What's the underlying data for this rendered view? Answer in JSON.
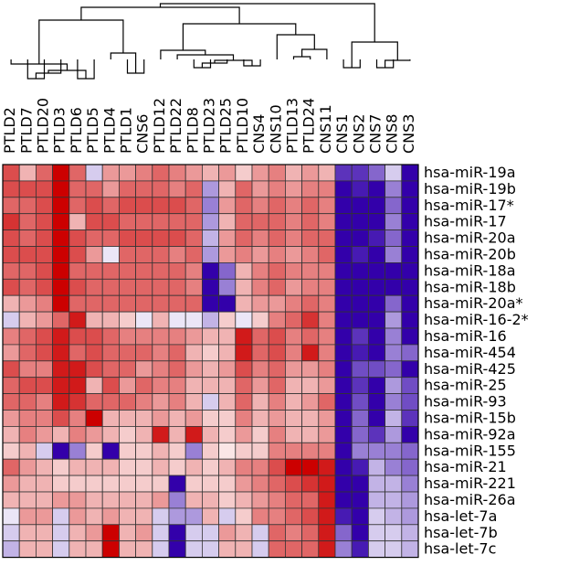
{
  "chart_data": {
    "type": "heatmap",
    "columns": [
      "PTLD2",
      "PTLD7",
      "PTLD20",
      "PTLD3",
      "PTLD6",
      "PTLD5",
      "PTLD4",
      "PTLD1",
      "CNS6",
      "PTLD12",
      "PTLD22",
      "PTLD8",
      "PTLD23",
      "PTLD25",
      "PTLD10",
      "CNS4",
      "CNS10",
      "PTLD13",
      "PTLD24",
      "CNS11",
      "CNS1",
      "CNS2",
      "CNS7",
      "CNS8",
      "CNS3"
    ],
    "rows": [
      "hsa-miR-19a",
      "hsa-miR-19b",
      "hsa-miR-17*",
      "hsa-miR-17",
      "hsa-miR-20a",
      "hsa-miR-20b",
      "hsa-miR-18a",
      "hsa-miR-18b",
      "hsa-miR-20a*",
      "hsa-miR-16-2*",
      "hsa-miR-16",
      "hsa-miR-454",
      "hsa-miR-425",
      "hsa-miR-25",
      "hsa-miR-93",
      "hsa-miR-15b",
      "hsa-miR-92a",
      "hsa-miR-155",
      "hsa-miR-21",
      "hsa-miR-221",
      "hsa-miR-26a",
      "hsa-let-7a",
      "hsa-let-7b",
      "hsa-let-7c"
    ],
    "value_scale": "-1 = deep blue, 0 = white, 1 = deep red (no legend shown)",
    "values": [
      [
        0.7,
        0.3,
        0.6,
        1.0,
        0.6,
        -0.2,
        0.4,
        0.4,
        0.5,
        0.6,
        0.5,
        0.4,
        0.3,
        0.4,
        0.2,
        0.4,
        0.5,
        0.3,
        0.4,
        0.3,
        -0.8,
        -0.8,
        -0.6,
        -0.2,
        -1.0
      ],
      [
        0.7,
        0.7,
        0.7,
        1.0,
        0.6,
        0.6,
        0.4,
        0.6,
        0.6,
        0.6,
        0.5,
        0.6,
        -0.4,
        0.3,
        0.6,
        0.4,
        0.5,
        0.4,
        0.5,
        0.5,
        -1.0,
        -0.9,
        -1.0,
        -0.5,
        -1.0
      ],
      [
        0.6,
        0.6,
        0.7,
        1.0,
        0.6,
        0.7,
        0.6,
        0.7,
        0.7,
        0.7,
        0.7,
        0.6,
        -0.5,
        0.4,
        0.6,
        0.5,
        0.6,
        0.5,
        0.6,
        0.5,
        -1.0,
        -1.0,
        -1.0,
        -0.6,
        -1.0
      ],
      [
        0.8,
        0.6,
        0.7,
        1.0,
        0.3,
        0.7,
        0.7,
        0.6,
        0.6,
        0.6,
        0.6,
        0.6,
        -0.4,
        0.3,
        0.6,
        0.6,
        0.6,
        0.5,
        0.6,
        0.5,
        -1.0,
        -1.0,
        -1.0,
        -0.5,
        -1.0
      ],
      [
        0.7,
        0.6,
        0.7,
        1.0,
        0.7,
        0.6,
        0.6,
        0.7,
        0.7,
        0.7,
        0.7,
        0.6,
        -0.3,
        0.4,
        0.6,
        0.5,
        0.6,
        0.5,
        0.6,
        0.6,
        -1.0,
        -1.0,
        -0.9,
        -0.6,
        -1.0
      ],
      [
        0.7,
        0.7,
        0.7,
        1.0,
        0.7,
        0.4,
        -0.1,
        0.6,
        0.6,
        0.6,
        0.5,
        0.6,
        -0.4,
        0.4,
        0.5,
        0.4,
        0.5,
        0.4,
        0.5,
        0.6,
        -1.0,
        -0.9,
        -1.0,
        -0.5,
        -1.0
      ],
      [
        0.6,
        0.6,
        0.7,
        1.0,
        0.6,
        0.6,
        0.6,
        0.6,
        0.6,
        0.6,
        0.6,
        0.5,
        -1.0,
        -0.6,
        0.3,
        0.5,
        0.6,
        0.5,
        0.5,
        0.5,
        -1.0,
        -1.0,
        -1.0,
        -1.0,
        -1.0
      ],
      [
        0.7,
        0.6,
        0.7,
        1.0,
        0.7,
        0.6,
        0.6,
        0.6,
        0.6,
        0.6,
        0.6,
        0.5,
        -1.0,
        -0.5,
        0.3,
        0.5,
        0.6,
        0.4,
        0.5,
        0.5,
        -1.0,
        -1.0,
        -1.0,
        -1.0,
        -1.0
      ],
      [
        0.3,
        0.4,
        0.5,
        1.0,
        0.6,
        0.6,
        0.6,
        0.6,
        0.6,
        0.6,
        0.6,
        0.6,
        -1.0,
        -1.0,
        0.3,
        0.4,
        0.4,
        0.5,
        0.6,
        0.5,
        -1.0,
        -1.0,
        -1.0,
        -0.6,
        -1.0
      ],
      [
        -0.2,
        0.3,
        0.4,
        0.6,
        0.9,
        0.3,
        0.3,
        0.2,
        -0.1,
        0.3,
        -0.1,
        -0.1,
        -0.3,
        0.2,
        -0.1,
        0.2,
        0.5,
        0.6,
        0.8,
        0.5,
        -1.0,
        -1.0,
        -1.0,
        -0.4,
        -1.0
      ],
      [
        0.5,
        0.6,
        0.7,
        0.9,
        0.7,
        0.7,
        0.6,
        0.5,
        0.5,
        0.5,
        0.5,
        0.4,
        0.3,
        0.3,
        0.9,
        0.6,
        0.7,
        0.5,
        0.6,
        0.5,
        -1.0,
        -0.8,
        -1.0,
        -0.5,
        -1.0
      ],
      [
        0.4,
        0.6,
        0.7,
        0.9,
        0.6,
        0.7,
        0.6,
        0.6,
        0.6,
        0.5,
        0.6,
        0.3,
        0.2,
        0.3,
        0.9,
        0.6,
        0.7,
        0.5,
        0.9,
        0.5,
        -1.0,
        -0.9,
        -1.0,
        -0.5,
        -0.6
      ],
      [
        0.7,
        0.5,
        0.5,
        0.9,
        0.9,
        0.7,
        0.6,
        0.6,
        0.4,
        0.5,
        0.6,
        0.4,
        0.3,
        0.4,
        0.7,
        0.5,
        0.6,
        0.4,
        0.4,
        0.5,
        -1.0,
        -0.7,
        -0.7,
        -0.6,
        -1.0
      ],
      [
        0.6,
        0.7,
        0.7,
        0.9,
        0.9,
        0.3,
        0.7,
        0.4,
        0.6,
        0.5,
        0.5,
        0.3,
        0.3,
        0.3,
        0.6,
        0.4,
        0.6,
        0.3,
        0.3,
        0.4,
        -1.0,
        -0.8,
        -1.0,
        -0.4,
        -0.7
      ],
      [
        0.6,
        0.6,
        0.5,
        0.9,
        0.8,
        0.6,
        0.6,
        0.6,
        0.5,
        0.4,
        0.5,
        0.3,
        -0.2,
        0.3,
        0.6,
        0.3,
        0.5,
        0.3,
        0.4,
        0.6,
        -1.0,
        -0.7,
        -1.0,
        -0.5,
        -0.7
      ],
      [
        0.4,
        0.5,
        0.5,
        0.7,
        0.5,
        1.0,
        0.3,
        0.3,
        0.3,
        0.4,
        0.3,
        0.4,
        0.2,
        0.2,
        0.5,
        0.3,
        0.4,
        0.3,
        0.3,
        0.4,
        -1.0,
        -0.6,
        -1.0,
        -0.3,
        -0.8
      ],
      [
        0.3,
        0.5,
        0.4,
        0.3,
        0.5,
        0.4,
        0.3,
        0.2,
        0.3,
        0.9,
        0.3,
        0.9,
        0.3,
        0.2,
        0.4,
        0.2,
        0.5,
        0.3,
        0.3,
        0.4,
        -1.0,
        -0.6,
        -0.8,
        -0.4,
        -1.0
      ],
      [
        0.2,
        0.3,
        -0.2,
        -1.0,
        -0.5,
        0.2,
        -1.0,
        0.2,
        0.2,
        0.3,
        0.2,
        -0.5,
        0.2,
        0.1,
        0.2,
        0.2,
        0.5,
        0.5,
        0.5,
        0.5,
        -1.0,
        -0.5,
        -0.5,
        -0.5,
        -0.6
      ],
      [
        0.6,
        0.4,
        0.3,
        0.2,
        0.3,
        0.3,
        0.3,
        0.2,
        0.2,
        0.3,
        0.2,
        0.3,
        0.2,
        0.3,
        0.5,
        0.5,
        0.7,
        1.0,
        1.0,
        0.9,
        -1.0,
        -0.9,
        -0.3,
        -0.5,
        -0.6
      ],
      [
        0.4,
        0.3,
        0.3,
        0.2,
        0.2,
        0.2,
        0.2,
        0.2,
        0.2,
        0.2,
        -1.0,
        0.2,
        0.2,
        0.2,
        0.4,
        0.5,
        0.6,
        0.7,
        0.8,
        0.9,
        -1.0,
        -1.0,
        -0.3,
        -0.3,
        -0.5
      ],
      [
        0.3,
        0.3,
        0.3,
        0.4,
        0.4,
        0.3,
        0.3,
        0.3,
        0.3,
        0.4,
        -0.5,
        0.3,
        0.3,
        0.2,
        0.3,
        0.4,
        0.5,
        0.6,
        0.6,
        0.9,
        -1.0,
        -1.0,
        -0.3,
        -0.3,
        -0.4
      ],
      [
        -0.1,
        0.4,
        0.4,
        -0.2,
        0.4,
        0.3,
        0.4,
        0.3,
        0.3,
        -0.2,
        -0.4,
        -0.4,
        0.3,
        -0.2,
        0.2,
        0.5,
        0.5,
        0.6,
        0.7,
        0.9,
        -0.9,
        -1.0,
        -0.2,
        -0.3,
        -0.4
      ],
      [
        -0.2,
        0.3,
        0.3,
        -0.2,
        0.3,
        0.4,
        1.0,
        0.3,
        0.4,
        -0.2,
        -1.0,
        -0.2,
        -0.2,
        0.4,
        0.3,
        -0.2,
        0.6,
        0.5,
        0.6,
        0.9,
        -0.6,
        -1.0,
        -0.2,
        -0.2,
        -0.3
      ],
      [
        -0.3,
        0.3,
        0.3,
        -0.2,
        0.3,
        0.3,
        1.0,
        0.3,
        0.3,
        -0.2,
        -1.0,
        -0.2,
        -0.2,
        0.3,
        0.3,
        -0.2,
        0.6,
        0.6,
        0.6,
        0.9,
        -0.5,
        -0.9,
        -0.2,
        -0.2,
        -0.3
      ]
    ],
    "dendrogram_present": true,
    "grid": true,
    "colors": {
      "high": "#cc0000",
      "mid": "#ffffff",
      "low": "#3300aa",
      "grid_line": "#333333"
    }
  }
}
